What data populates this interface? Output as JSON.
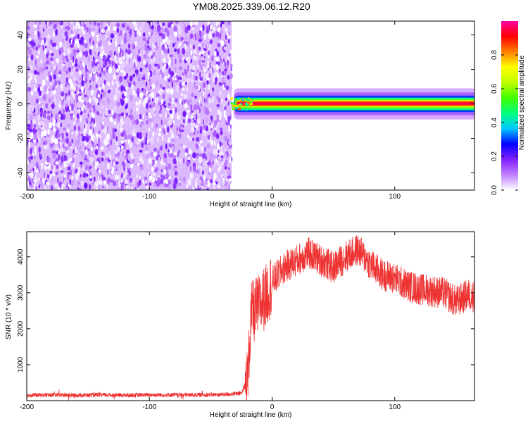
{
  "title": "YM08.2025.339.06.12.R20",
  "chart_data": [
    {
      "type": "heatmap",
      "xlabel": "Height of straight line (km)",
      "ylabel": "Frequency (Hz)",
      "xlim": [
        -200,
        165
      ],
      "ylim": [
        -50,
        48
      ],
      "xticks": [
        -200,
        -100,
        0,
        100
      ],
      "yticks": [
        -40,
        -20,
        0,
        20,
        40
      ],
      "colorbar": {
        "label": "Normalized spectral amplitude",
        "range": [
          0,
          1
        ],
        "ticks": [
          "0.0",
          "0.2",
          "0.4",
          "0.6",
          "0.8"
        ],
        "tick_values": [
          0,
          0.2,
          0.4,
          0.6,
          0.8
        ],
        "colors": [
          "#ffffff",
          "#c080ff",
          "#8020ff",
          "#0000ff",
          "#00c8ff",
          "#00ff80",
          "#40ff00",
          "#c0ff00",
          "#ffff00",
          "#ff8000",
          "#ff0000",
          "#ff00a0"
        ]
      },
      "regions": [
        {
          "name": "noise",
          "x_range": [
            -200,
            -33
          ],
          "y_range": [
            -50,
            48
          ],
          "amplitude_range": [
            0.0,
            0.2
          ]
        },
        {
          "name": "signal-band",
          "x_range": [
            -33,
            165
          ],
          "center_frequency": 0,
          "half_width_hz": 3,
          "peak_amplitude": 0.95
        }
      ]
    },
    {
      "type": "line",
      "xlabel": "Height of straight line (km)",
      "ylabel": "SNR (10 * v/v)",
      "xlim": [
        -200,
        165
      ],
      "ylim": [
        0,
        4700
      ],
      "xticks": [
        -200,
        -100,
        0,
        100
      ],
      "yticks": [
        1000,
        2000,
        3000,
        4000
      ],
      "color": "#ee3333",
      "series_points": [
        [
          -200,
          150
        ],
        [
          -180,
          160
        ],
        [
          -160,
          150
        ],
        [
          -140,
          160
        ],
        [
          -120,
          150
        ],
        [
          -100,
          160
        ],
        [
          -80,
          160
        ],
        [
          -60,
          160
        ],
        [
          -40,
          170
        ],
        [
          -25,
          200
        ],
        [
          -20,
          600
        ],
        [
          -17,
          2400
        ],
        [
          -12,
          2600
        ],
        [
          -5,
          2900
        ],
        [
          0,
          3300
        ],
        [
          10,
          3700
        ],
        [
          20,
          3900
        ],
        [
          30,
          4100
        ],
        [
          40,
          3900
        ],
        [
          50,
          3700
        ],
        [
          60,
          4000
        ],
        [
          70,
          4200
        ],
        [
          80,
          3800
        ],
        [
          90,
          3500
        ],
        [
          100,
          3400
        ],
        [
          110,
          3200
        ],
        [
          120,
          3100
        ],
        [
          130,
          3050
        ],
        [
          140,
          3000
        ],
        [
          150,
          2750
        ],
        [
          160,
          2950
        ],
        [
          165,
          2900
        ]
      ]
    }
  ]
}
